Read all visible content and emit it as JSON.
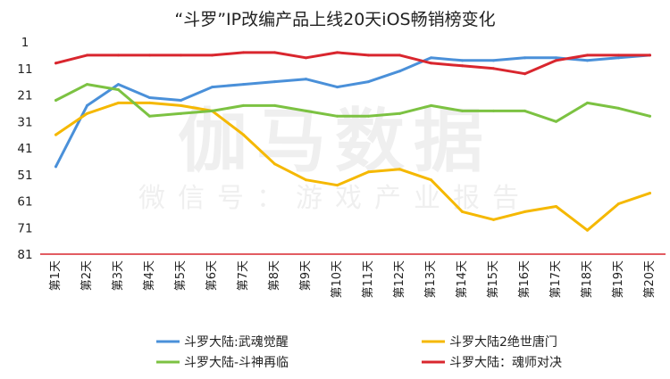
{
  "chart_data": {
    "type": "line",
    "title": "“斗罗”IP改编产品上线20天iOS畅销榜变化",
    "watermark": [
      "伽马数据",
      "微信号：游戏产业报告"
    ],
    "categories": [
      "第1天",
      "第2天",
      "第3天",
      "第4天",
      "第5天",
      "第6天",
      "第7天",
      "第8天",
      "第9天",
      "第10天",
      "第11天",
      "第12天",
      "第13天",
      "第14天",
      "第15天",
      "第16天",
      "第17天",
      "第18天",
      "第19天",
      "第20天"
    ],
    "ylim": [
      1,
      81
    ],
    "y_inverted": true,
    "yticks": [
      1,
      11,
      21,
      31,
      41,
      51,
      61,
      71,
      81
    ],
    "ytick_labels": [
      "1",
      "11",
      "21",
      "31",
      "41",
      "51",
      "61",
      "71",
      "81"
    ],
    "grid": false,
    "legend_position": "bottom",
    "series": [
      {
        "name": "斗罗大陆:武魂觉醒",
        "color": "#4a90d9",
        "values": [
          48,
          25,
          17,
          22,
          23,
          18,
          17,
          16,
          15,
          18,
          16,
          12,
          7,
          8,
          8,
          7,
          7,
          8,
          7,
          6
        ]
      },
      {
        "name": "斗罗大陆2绝世唐门",
        "color": "#f5b800",
        "values": [
          36,
          28,
          24,
          24,
          25,
          27,
          36,
          47,
          53,
          55,
          50,
          49,
          53,
          65,
          68,
          65,
          63,
          72,
          62,
          58
        ]
      },
      {
        "name": "斗罗大陆-斗神再临",
        "color": "#7cc242",
        "values": [
          23,
          17,
          19,
          29,
          28,
          27,
          25,
          25,
          27,
          29,
          29,
          28,
          25,
          27,
          27,
          27,
          31,
          24,
          26,
          29
        ]
      },
      {
        "name": "斗罗大陆：魂师对决",
        "color": "#d9262e",
        "values": [
          9,
          6,
          6,
          6,
          6,
          6,
          5,
          5,
          7,
          5,
          6,
          6,
          9,
          10,
          11,
          13,
          8,
          6,
          6,
          6
        ]
      }
    ]
  }
}
